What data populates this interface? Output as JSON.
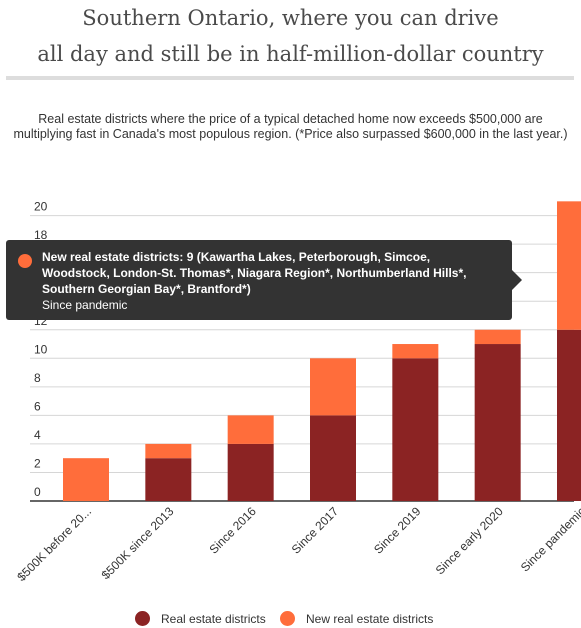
{
  "header": {
    "title_line1": "Southern Ontario, where you can drive",
    "title_line2": "all day and still be in half-million-dollar country",
    "subtitle": "Real estate districts where the price of a typical detached home now exceeds $500,000 are multiplying fast in Canada's most populous region. (*Price also surpassed $600,000 in the last year.)"
  },
  "colors": {
    "existing": "#8b2323",
    "new": "#ff6d3b",
    "grid": "#d6d6d6",
    "axis": "#333333",
    "tooltip_bg": "#333333"
  },
  "chart_data": {
    "type": "bar",
    "stacked": true,
    "categories": [
      "$500K before 20...",
      "$500K since 2013",
      "Since 2016",
      "Since 2017",
      "Since 2019",
      "Since early 2020",
      "Since pandemic"
    ],
    "series": [
      {
        "name": "Real estate districts",
        "values": [
          0,
          3,
          4,
          6,
          10,
          11,
          12
        ]
      },
      {
        "name": "New real estate districts",
        "values": [
          3,
          1,
          2,
          4,
          1,
          1,
          9
        ]
      }
    ],
    "y_ticks": [
      0,
      2,
      4,
      6,
      8,
      10,
      12,
      14,
      16,
      18,
      20
    ],
    "ylim": [
      0,
      21
    ],
    "grid": true,
    "legend_position": "bottom"
  },
  "tooltip": {
    "text": "New real estate districts: 9 (Kawartha Lakes, Peterborough, Simcoe, Woodstock, London-St. Thomas*, Niagara Region*, Northumberland Hills*, Southern Georgian Bay*, Brantford*)",
    "category": "Since pandemic"
  }
}
